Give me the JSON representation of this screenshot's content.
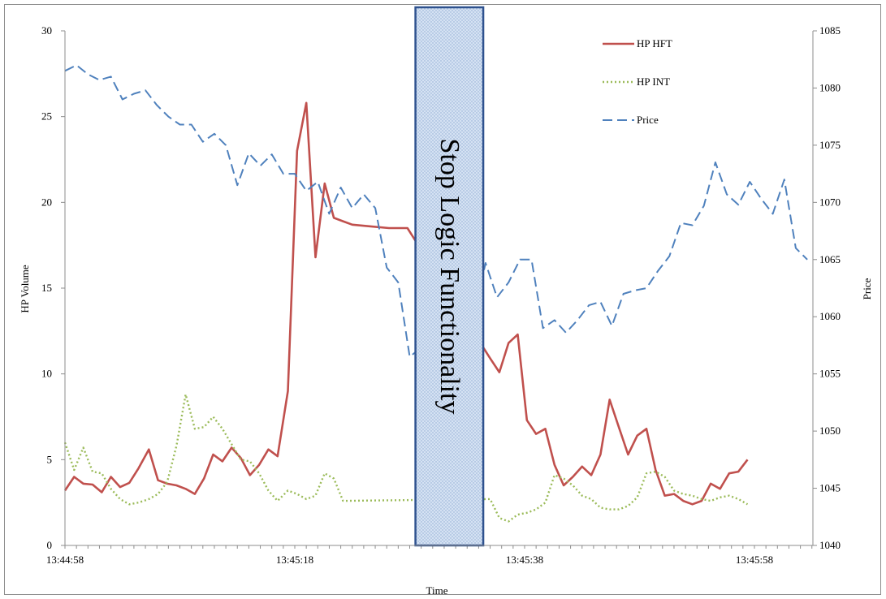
{
  "chart_data": {
    "type": "line",
    "xlabel": "Time",
    "ylabel": "HP Volume",
    "y2label": "Price",
    "ylim": [
      0,
      30
    ],
    "y2lim": [
      1040,
      1085
    ],
    "yticks": [
      0,
      5,
      10,
      15,
      20,
      25,
      30
    ],
    "y2ticks": [
      1040,
      1045,
      1050,
      1055,
      1060,
      1065,
      1070,
      1075,
      1080,
      1085
    ],
    "x_seconds": [
      0,
      66
    ],
    "x_tick_labels": [
      {
        "t": 0,
        "label": "13:44:58"
      },
      {
        "t": 20,
        "label": "13:45:18"
      },
      {
        "t": 40,
        "label": "13:45:38"
      },
      {
        "t": 60,
        "label": "13:45:58"
      }
    ],
    "legend_position": "top-right",
    "annotation": {
      "text": "Stop Logic Functionality",
      "x_from": 30.5,
      "x_to": 36.4
    },
    "series": [
      {
        "name": "HP HFT",
        "axis": "left",
        "color": "#c0504d",
        "style": "solid",
        "points": [
          [
            0,
            3.2
          ],
          [
            0.8,
            4.0
          ],
          [
            1.6,
            3.6
          ],
          [
            2.4,
            3.55
          ],
          [
            3.2,
            3.1
          ],
          [
            4,
            4.0
          ],
          [
            4.8,
            3.4
          ],
          [
            5.6,
            3.65
          ],
          [
            6.4,
            4.5
          ],
          [
            7.3,
            5.6
          ],
          [
            8.1,
            3.8
          ],
          [
            8.9,
            3.6
          ],
          [
            9.7,
            3.5
          ],
          [
            10.5,
            3.3
          ],
          [
            11.3,
            3.0
          ],
          [
            12.1,
            3.9
          ],
          [
            12.9,
            5.3
          ],
          [
            13.7,
            4.9
          ],
          [
            14.5,
            5.7
          ],
          [
            15.3,
            5.1
          ],
          [
            16.1,
            4.1
          ],
          [
            16.9,
            4.7
          ],
          [
            17.7,
            5.6
          ],
          [
            18.5,
            5.2
          ],
          [
            19.4,
            9.0
          ],
          [
            20.2,
            23.0
          ],
          [
            21.0,
            25.8
          ],
          [
            21.8,
            16.8
          ],
          [
            22.6,
            21.1
          ],
          [
            23.4,
            19.1
          ],
          [
            24.2,
            18.9
          ],
          [
            25.0,
            18.7
          ],
          [
            26.6,
            18.6
          ],
          [
            28.2,
            18.5
          ],
          [
            29.8,
            18.5
          ],
          [
            37.0,
            10.9
          ],
          [
            37.8,
            10.1
          ],
          [
            38.6,
            11.8
          ],
          [
            39.4,
            12.3
          ],
          [
            40.2,
            7.3
          ],
          [
            41.0,
            6.5
          ],
          [
            41.8,
            6.8
          ],
          [
            42.6,
            4.7
          ],
          [
            43.4,
            3.5
          ],
          [
            44.2,
            4.0
          ],
          [
            45.0,
            4.6
          ],
          [
            45.8,
            4.1
          ],
          [
            46.6,
            5.3
          ],
          [
            47.4,
            8.5
          ],
          [
            48.2,
            6.9
          ],
          [
            49.0,
            5.3
          ],
          [
            49.8,
            6.4
          ],
          [
            50.6,
            6.8
          ],
          [
            51.4,
            4.4
          ],
          [
            52.2,
            2.9
          ],
          [
            53.0,
            3.0
          ],
          [
            53.8,
            2.6
          ],
          [
            54.6,
            2.4
          ],
          [
            55.4,
            2.6
          ],
          [
            56.2,
            3.6
          ],
          [
            57.0,
            3.3
          ],
          [
            57.8,
            4.2
          ],
          [
            58.6,
            4.3
          ],
          [
            59.4,
            5.0
          ]
        ]
      },
      {
        "name": "HP INT",
        "axis": "left",
        "color": "#9bbb59",
        "style": "dotted",
        "points": [
          [
            0,
            6.0
          ],
          [
            0.8,
            4.4
          ],
          [
            1.6,
            5.7
          ],
          [
            2.4,
            4.3
          ],
          [
            3.2,
            4.2
          ],
          [
            4,
            3.3
          ],
          [
            4.8,
            2.7
          ],
          [
            5.6,
            2.4
          ],
          [
            6.4,
            2.5
          ],
          [
            7.3,
            2.7
          ],
          [
            8.1,
            3.0
          ],
          [
            8.9,
            3.7
          ],
          [
            9.7,
            5.8
          ],
          [
            10.5,
            8.8
          ],
          [
            11.3,
            6.8
          ],
          [
            12.1,
            6.9
          ],
          [
            12.9,
            7.5
          ],
          [
            13.7,
            6.8
          ],
          [
            14.5,
            5.9
          ],
          [
            15.3,
            5.0
          ],
          [
            16.1,
            4.9
          ],
          [
            16.9,
            4.2
          ],
          [
            17.7,
            3.2
          ],
          [
            18.5,
            2.6
          ],
          [
            19.4,
            3.2
          ],
          [
            20.2,
            3.0
          ],
          [
            21.0,
            2.7
          ],
          [
            21.8,
            2.9
          ],
          [
            22.6,
            4.2
          ],
          [
            23.4,
            3.9
          ],
          [
            24.2,
            2.6
          ],
          [
            37.0,
            2.7
          ],
          [
            37.8,
            1.6
          ],
          [
            38.6,
            1.4
          ],
          [
            39.4,
            1.8
          ],
          [
            40.2,
            1.9
          ],
          [
            41.0,
            2.1
          ],
          [
            41.8,
            2.5
          ],
          [
            42.6,
            4.1
          ],
          [
            43.4,
            3.9
          ],
          [
            44.2,
            3.5
          ],
          [
            45.0,
            2.9
          ],
          [
            45.8,
            2.7
          ],
          [
            46.6,
            2.2
          ],
          [
            47.4,
            2.1
          ],
          [
            48.2,
            2.1
          ],
          [
            49.0,
            2.3
          ],
          [
            49.8,
            2.8
          ],
          [
            50.6,
            4.2
          ],
          [
            51.4,
            4.3
          ],
          [
            52.2,
            4.0
          ],
          [
            53.0,
            3.2
          ],
          [
            53.8,
            3.0
          ],
          [
            54.6,
            2.9
          ],
          [
            55.4,
            2.7
          ],
          [
            56.2,
            2.6
          ],
          [
            57.0,
            2.8
          ],
          [
            57.8,
            2.9
          ],
          [
            58.6,
            2.7
          ],
          [
            59.4,
            2.4
          ]
        ]
      },
      {
        "name": "Price",
        "axis": "right",
        "color": "#4f81bd",
        "style": "dashed",
        "points": [
          [
            0,
            1081.5
          ],
          [
            1.0,
            1082
          ],
          [
            2.0,
            1081.2
          ],
          [
            3.0,
            1080.7
          ],
          [
            4.0,
            1081
          ],
          [
            5.0,
            1079
          ],
          [
            6.0,
            1079.5
          ],
          [
            7.0,
            1079.8
          ],
          [
            8.0,
            1078.5
          ],
          [
            9.0,
            1077.5
          ],
          [
            10.0,
            1076.8
          ],
          [
            11.0,
            1076.8
          ],
          [
            12.0,
            1075.3
          ],
          [
            13.0,
            1076
          ],
          [
            14.0,
            1075
          ],
          [
            15.0,
            1071.5
          ],
          [
            16.0,
            1074.3
          ],
          [
            17.0,
            1073.2
          ],
          [
            18.0,
            1074.2
          ],
          [
            19.0,
            1072.5
          ],
          [
            20.0,
            1072.5
          ],
          [
            21.0,
            1071
          ],
          [
            22.0,
            1071.8
          ],
          [
            23.0,
            1069
          ],
          [
            24.0,
            1071.3
          ],
          [
            25.0,
            1069.5
          ],
          [
            26.0,
            1070.7
          ],
          [
            27.0,
            1069.5
          ],
          [
            28.0,
            1064.3
          ],
          [
            29.0,
            1063
          ],
          [
            30.0,
            1056.5
          ],
          [
            35.8,
            1061
          ],
          [
            36.6,
            1064.7
          ],
          [
            37.6,
            1061.7
          ],
          [
            38.6,
            1063
          ],
          [
            39.6,
            1065
          ],
          [
            40.6,
            1065
          ],
          [
            41.6,
            1059
          ],
          [
            42.6,
            1059.7
          ],
          [
            43.6,
            1058.6
          ],
          [
            44.6,
            1059.7
          ],
          [
            45.6,
            1061
          ],
          [
            46.6,
            1061.3
          ],
          [
            47.6,
            1059.2
          ],
          [
            48.6,
            1062
          ],
          [
            49.6,
            1062.3
          ],
          [
            50.6,
            1062.5
          ],
          [
            51.6,
            1064
          ],
          [
            52.6,
            1065.3
          ],
          [
            53.6,
            1068.2
          ],
          [
            54.6,
            1068
          ],
          [
            55.6,
            1069.7
          ],
          [
            56.6,
            1073.5
          ],
          [
            57.6,
            1070.7
          ],
          [
            58.6,
            1069.8
          ],
          [
            59.6,
            1071.8
          ],
          [
            60.6,
            1070.3
          ],
          [
            61.6,
            1069
          ],
          [
            62.6,
            1072
          ],
          [
            63.6,
            1066
          ],
          [
            64.6,
            1065
          ]
        ]
      }
    ]
  }
}
